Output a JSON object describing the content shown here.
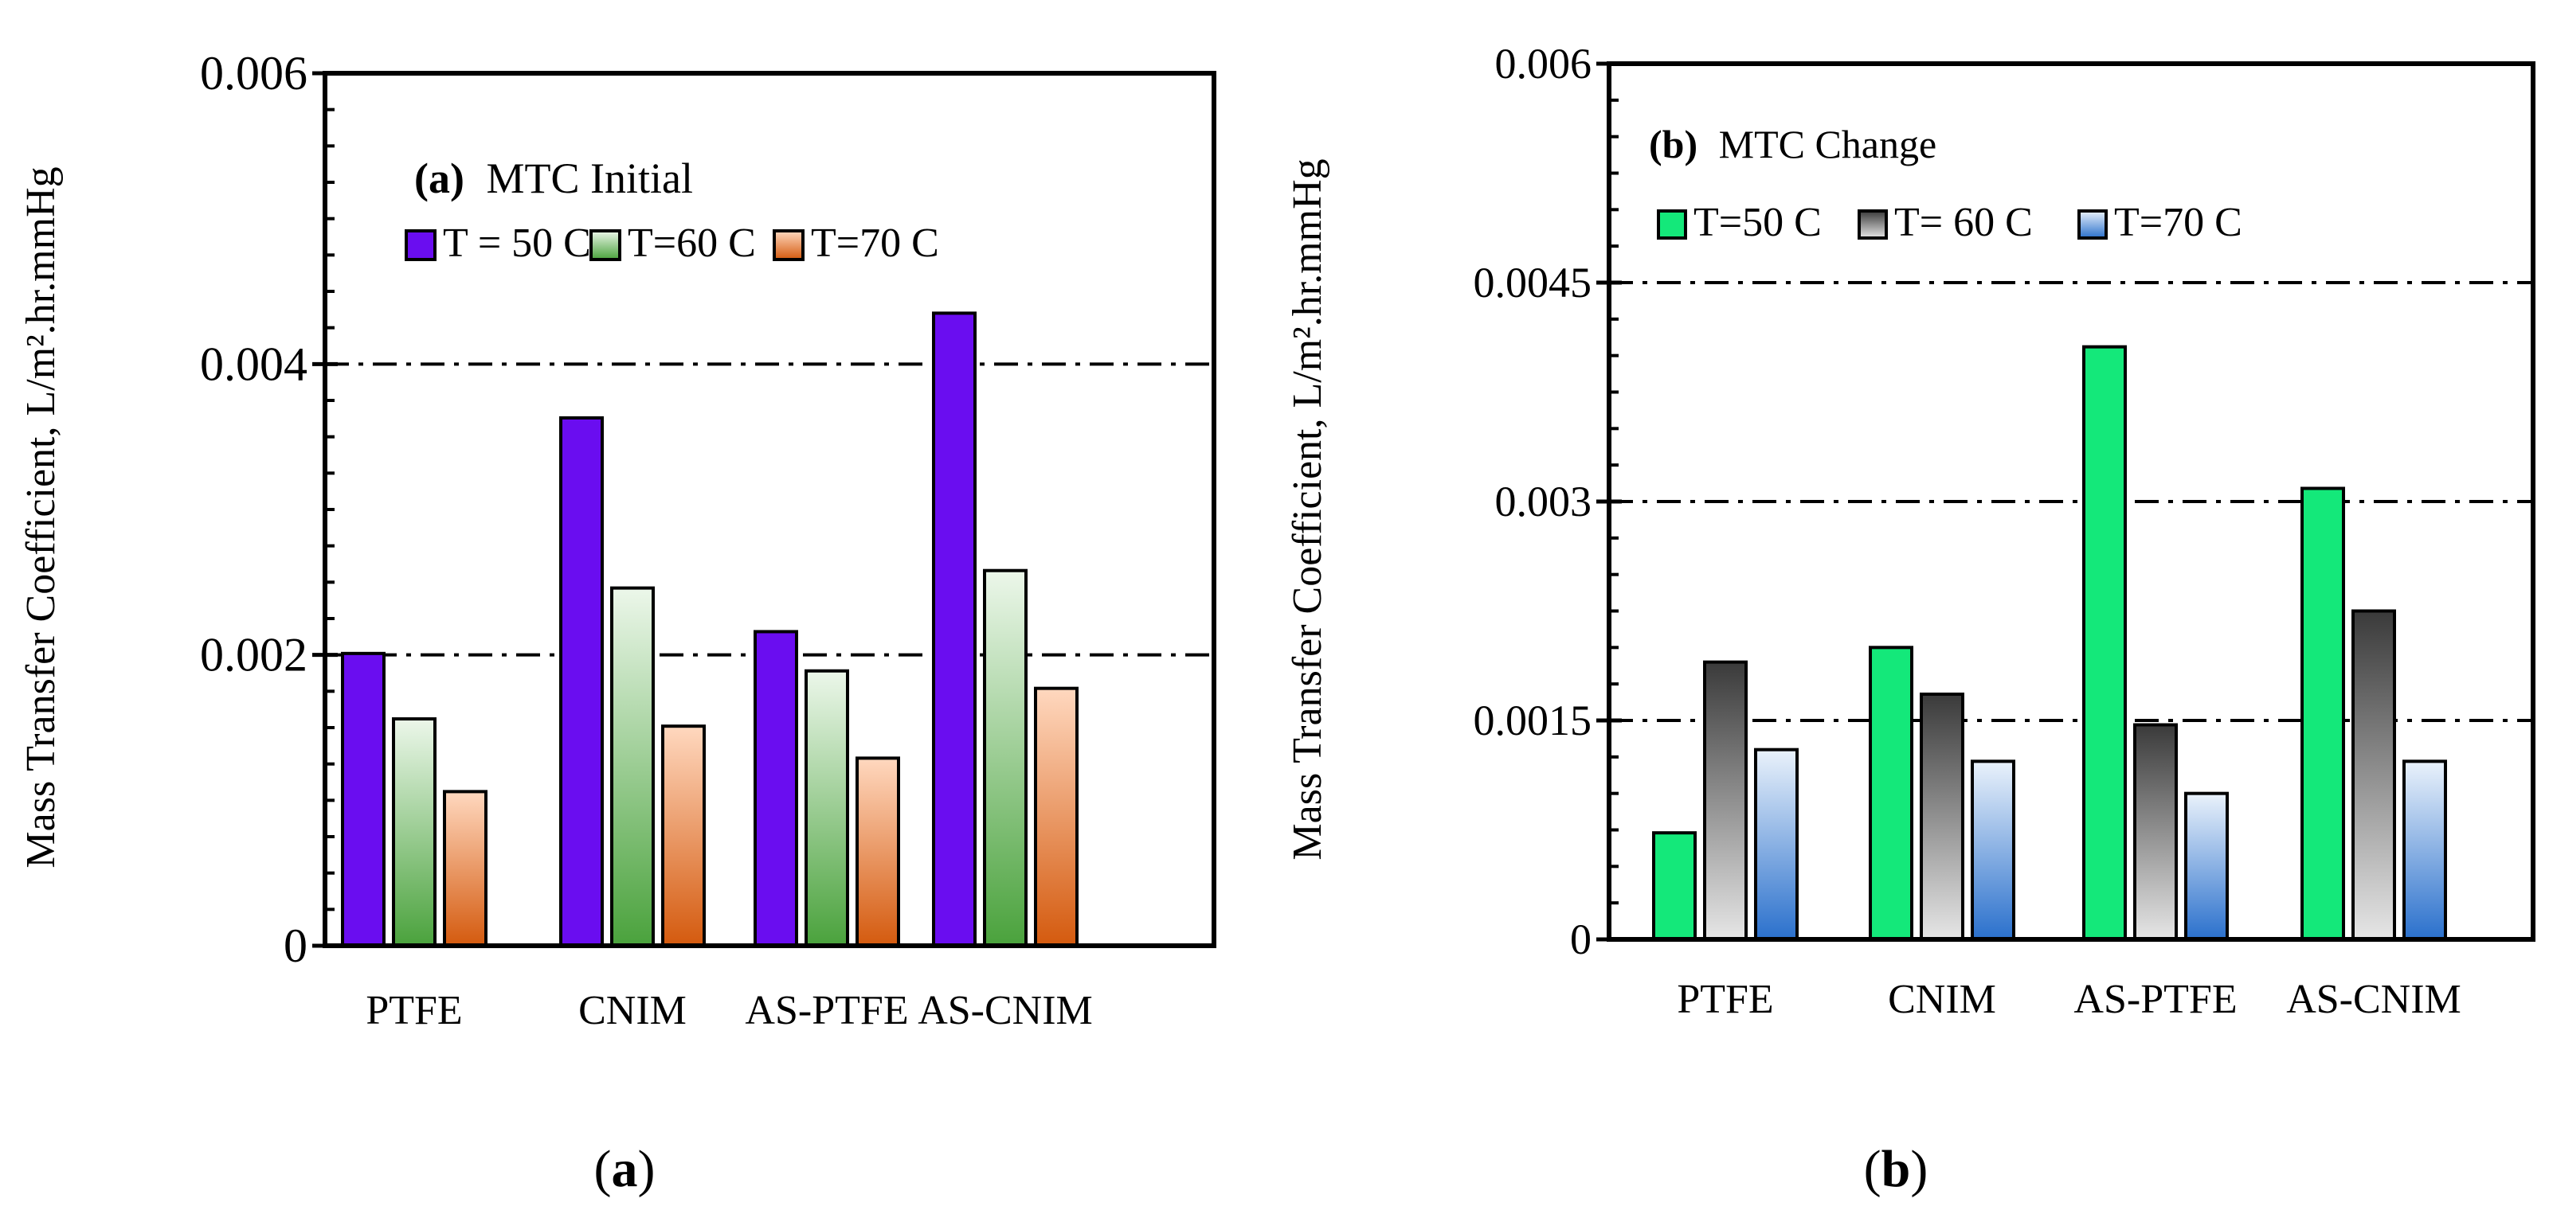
{
  "chart_data": [
    {
      "id": "a",
      "type": "bar",
      "panel_title_bold": "(a)",
      "panel_title": "MTC Initial",
      "caption": "a",
      "ylabel": "Mass Transfer Coefficient, L/m².hr.mmHg",
      "ylim": [
        0,
        0.006
      ],
      "yticks": [
        0,
        0.002,
        0.004,
        0.006
      ],
      "ytick_labels": [
        "0",
        "0.002",
        "0.004",
        "0.006"
      ],
      "minor_tick_step": 0.00025,
      "gridlines": [
        0.002,
        0.004
      ],
      "categories": [
        "PTFE",
        "CNIM",
        "AS-PTFE",
        "AS-CNIM"
      ],
      "series": [
        {
          "name": "T = 50 C",
          "values": [
            0.00201,
            0.00363,
            0.00216,
            0.00435
          ]
        },
        {
          "name": "T=60 C",
          "values": [
            0.00156,
            0.00246,
            0.00189,
            0.00258
          ]
        },
        {
          "name": "T=70 C",
          "values": [
            0.00106,
            0.00151,
            0.00129,
            0.00177
          ]
        }
      ]
    },
    {
      "id": "b",
      "type": "bar",
      "panel_title_bold": "(b)",
      "panel_title": "MTC Change",
      "caption": "b",
      "ylabel": "Mass Transfer Coefficient, L/m².hr.mmHg",
      "ylim": [
        0,
        0.006
      ],
      "yticks": [
        0,
        0.0015,
        0.003,
        0.0045,
        0.006
      ],
      "ytick_labels": [
        "0",
        "0.0015",
        "0.003",
        "0.0045",
        "0.006"
      ],
      "minor_tick_step": 0.00025,
      "gridlines": [
        0.0015,
        0.003,
        0.0045
      ],
      "categories": [
        "PTFE",
        "CNIM",
        "AS-PTFE",
        "AS-CNIM"
      ],
      "series": [
        {
          "name": "T=50 C",
          "values": [
            0.00073,
            0.002,
            0.00406,
            0.00309
          ]
        },
        {
          "name": "T= 60 C",
          "values": [
            0.0019,
            0.00168,
            0.00147,
            0.00225
          ]
        },
        {
          "name": "T=70 C",
          "values": [
            0.0013,
            0.00122,
            0.001,
            0.00122
          ]
        }
      ]
    }
  ],
  "colors": {
    "a_s0": "#6a0df0",
    "a_s1_top": "#ecf7ea",
    "a_s1_bottom": "#4aa23c",
    "a_s2_top": "#ffd8bf",
    "a_s2_bottom": "#d45a0e",
    "b_s0": "#14e87a",
    "b_s1_top": "#3a3a3a",
    "b_s1_bottom": "#e6e6e6",
    "b_s2_top": "#eaf2fb",
    "b_s2_bottom": "#2a70cc"
  }
}
